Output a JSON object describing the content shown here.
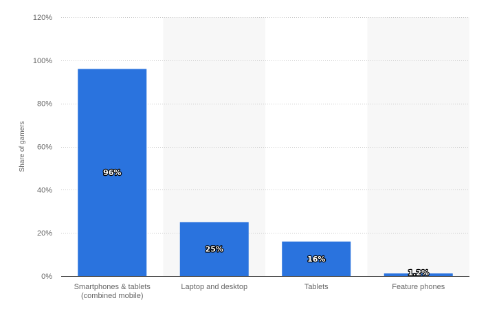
{
  "chart_data": {
    "type": "bar",
    "title": "",
    "xlabel": "",
    "ylabel": "Share of gamers",
    "categories": [
      [
        "Smartphones & tablets",
        "(combined mobile)"
      ],
      [
        "Laptop and desktop"
      ],
      [
        "Tablets"
      ],
      [
        "Feature phones"
      ]
    ],
    "values": [
      96,
      25,
      16,
      1.2
    ],
    "data_labels": [
      "96%",
      "25%",
      "16%",
      "1.2%"
    ],
    "ylim": [
      0,
      120
    ],
    "yticks": [
      0,
      20,
      40,
      60,
      80,
      100,
      120
    ],
    "ytick_labels": [
      "0%",
      "20%",
      "40%",
      "60%",
      "80%",
      "100%",
      "120%"
    ],
    "grid": true,
    "alternating_band_color": "#f7f7f7",
    "bar_color": "#2a73de",
    "grid_color": "#c8c8c8",
    "axis_color": "#333333",
    "text_color": "#666666"
  }
}
